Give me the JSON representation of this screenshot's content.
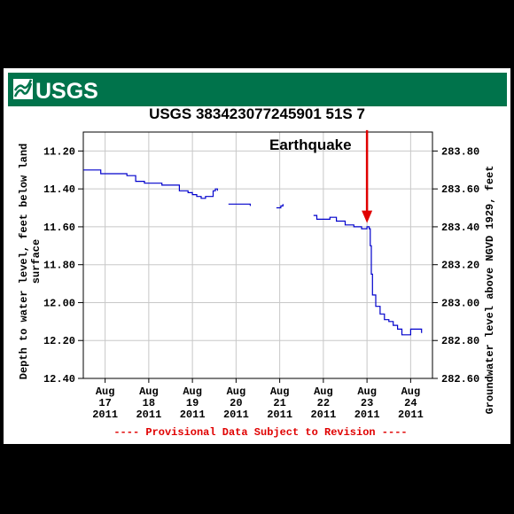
{
  "header": {
    "logo_text": "USGS",
    "brand_color": "#00734b"
  },
  "chart_data": {
    "type": "line",
    "title": "USGS 383423077245901 51S  7",
    "ylabel_left": [
      "Depth to water level, feet below land",
      "surface"
    ],
    "ylabel_right": "Groundwater level above NGVD 1929, feet",
    "y_left_reversed": true,
    "ylim_left": [
      11.1,
      12.4
    ],
    "ylim_right": [
      283.9,
      282.6
    ],
    "y_left_ticks": [
      "11.20",
      "11.40",
      "11.60",
      "11.80",
      "12.00",
      "12.20",
      "12.40"
    ],
    "y_right_ticks": [
      "283.80",
      "283.60",
      "283.40",
      "283.20",
      "283.00",
      "282.80",
      "282.60"
    ],
    "y_left_tick_values": [
      11.2,
      11.4,
      11.6,
      11.8,
      12.0,
      12.2,
      12.4
    ],
    "xlim": [
      2011.0,
      2011.16
    ],
    "x_ticks": [
      {
        "x": 2011.01,
        "label": [
          "Aug",
          "17",
          "2011"
        ]
      },
      {
        "x": 2011.03,
        "label": [
          "Aug",
          "18",
          "2011"
        ]
      },
      {
        "x": 2011.05,
        "label": [
          "Aug",
          "19",
          "2011"
        ]
      },
      {
        "x": 2011.07,
        "label": [
          "Aug",
          "20",
          "2011"
        ]
      },
      {
        "x": 2011.09,
        "label": [
          "Aug",
          "21",
          "2011"
        ]
      },
      {
        "x": 2011.11,
        "label": [
          "Aug",
          "22",
          "2011"
        ]
      },
      {
        "x": 2011.13,
        "label": [
          "Aug",
          "23",
          "2011"
        ]
      },
      {
        "x": 2011.15,
        "label": [
          "Aug",
          "24",
          "2011"
        ]
      }
    ],
    "series": [
      {
        "color": "#0000cc",
        "segments": [
          [
            [
              2011.0,
              11.3
            ],
            [
              2011.004,
              11.3
            ],
            [
              2011.008,
              11.32
            ],
            [
              2011.012,
              11.32
            ],
            [
              2011.016,
              11.32
            ],
            [
              2011.02,
              11.33
            ],
            [
              2011.024,
              11.36
            ],
            [
              2011.028,
              11.37
            ],
            [
              2011.032,
              11.37
            ],
            [
              2011.036,
              11.38
            ],
            [
              2011.04,
              11.38
            ],
            [
              2011.044,
              11.41
            ],
            [
              2011.048,
              11.42
            ],
            [
              2011.05,
              11.43
            ],
            [
              2011.052,
              11.44
            ],
            [
              2011.054,
              11.45
            ],
            [
              2011.056,
              11.44
            ],
            [
              2011.058,
              11.44
            ],
            [
              2011.0595,
              11.41
            ],
            [
              2011.0605,
              11.4
            ],
            [
              2011.0615,
              11.41
            ]
          ],
          [
            [
              2011.0665,
              11.48
            ],
            [
              2011.0705,
              11.48
            ],
            [
              2011.0745,
              11.48
            ],
            [
              2011.0765,
              11.49
            ]
          ],
          [
            [
              2011.0885,
              11.5
            ],
            [
              2011.0905,
              11.49
            ],
            [
              2011.0915,
              11.48
            ]
          ],
          [
            [
              2011.1055,
              11.54
            ],
            [
              2011.107,
              11.56
            ],
            [
              2011.11,
              11.56
            ],
            [
              2011.113,
              11.55
            ],
            [
              2011.116,
              11.57
            ],
            [
              2011.12,
              11.59
            ],
            [
              2011.124,
              11.6
            ],
            [
              2011.1275,
              11.61
            ],
            [
              2011.13,
              11.6
            ],
            [
              2011.131,
              11.61
            ],
            [
              2011.1315,
              11.7
            ],
            [
              2011.132,
              11.85
            ],
            [
              2011.1325,
              11.96
            ],
            [
              2011.134,
              12.02
            ],
            [
              2011.136,
              12.06
            ],
            [
              2011.138,
              12.09
            ],
            [
              2011.14,
              12.1
            ],
            [
              2011.142,
              12.12
            ],
            [
              2011.144,
              12.14
            ],
            [
              2011.146,
              12.17
            ],
            [
              2011.148,
              12.17
            ],
            [
              2011.15,
              12.14
            ],
            [
              2011.152,
              12.14
            ],
            [
              2011.154,
              12.14
            ],
            [
              2011.155,
              12.16
            ]
          ]
        ]
      }
    ],
    "annotations": [
      {
        "text": "Earthquake",
        "arrow_x": 2011.13,
        "arrow_y_from": 11.09,
        "arrow_y_to": 11.58,
        "color": "#e00000"
      }
    ],
    "footnote": "---- Provisional Data Subject to Revision ----",
    "grid": true
  }
}
